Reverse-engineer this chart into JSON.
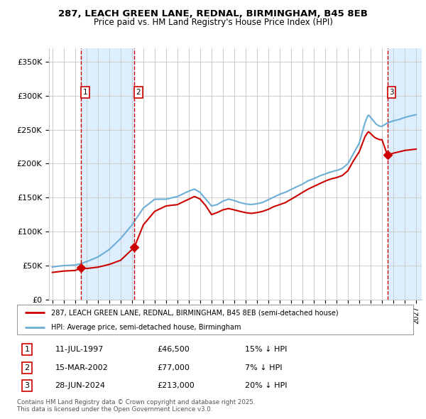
{
  "title_line1": "287, LEACH GREEN LANE, REDNAL, BIRMINGHAM, B45 8EB",
  "title_line2": "Price paid vs. HM Land Registry's House Price Index (HPI)",
  "sale_prices": [
    46500,
    77000,
    213000
  ],
  "sale_labels": [
    "1",
    "2",
    "3"
  ],
  "sale_hpi_pct": [
    "15% ↓ HPI",
    "7% ↓ HPI",
    "20% ↓ HPI"
  ],
  "sale_date_strs": [
    "11-JUL-1997",
    "15-MAR-2002",
    "28-JUN-2024"
  ],
  "sale_price_strs": [
    "£46,500",
    "£77,000",
    "£213,000"
  ],
  "legend_line1": "287, LEACH GREEN LANE, REDNAL, BIRMINGHAM, B45 8EB (semi-detached house)",
  "legend_line2": "HPI: Average price, semi-detached house, Birmingham",
  "footnote": "Contains HM Land Registry data © Crown copyright and database right 2025.\nThis data is licensed under the Open Government Licence v3.0.",
  "hpi_color": "#6baed6",
  "price_color": "#cc0000",
  "bg_color": "#ffffff",
  "grid_color": "#cccccc",
  "shaded_region_color": "#ddeeff",
  "ylim": [
    0,
    370000
  ],
  "yticks": [
    0,
    50000,
    100000,
    150000,
    200000,
    250000,
    300000,
    350000
  ],
  "ytick_labels": [
    "£0",
    "£50K",
    "£100K",
    "£150K",
    "£200K",
    "£250K",
    "£300K",
    "£350K"
  ],
  "xlim_start": 1994.7,
  "xlim_end": 2027.5,
  "hpi_keypoints": [
    [
      1995.0,
      48000
    ],
    [
      1996.0,
      50000
    ],
    [
      1997.0,
      51000
    ],
    [
      1997.5,
      53000
    ],
    [
      1998.0,
      56000
    ],
    [
      1999.0,
      63000
    ],
    [
      2000.0,
      74000
    ],
    [
      2001.0,
      90000
    ],
    [
      2002.0,
      110000
    ],
    [
      2003.0,
      135000
    ],
    [
      2004.0,
      148000
    ],
    [
      2005.0,
      148000
    ],
    [
      2006.0,
      152000
    ],
    [
      2007.0,
      160000
    ],
    [
      2007.5,
      163000
    ],
    [
      2008.0,
      158000
    ],
    [
      2008.5,
      148000
    ],
    [
      2009.0,
      138000
    ],
    [
      2009.5,
      140000
    ],
    [
      2010.0,
      145000
    ],
    [
      2010.5,
      148000
    ],
    [
      2011.0,
      146000
    ],
    [
      2011.5,
      143000
    ],
    [
      2012.0,
      141000
    ],
    [
      2012.5,
      140000
    ],
    [
      2013.0,
      141000
    ],
    [
      2013.5,
      143000
    ],
    [
      2014.0,
      147000
    ],
    [
      2014.5,
      151000
    ],
    [
      2015.0,
      155000
    ],
    [
      2015.5,
      158000
    ],
    [
      2016.0,
      162000
    ],
    [
      2016.5,
      166000
    ],
    [
      2017.0,
      170000
    ],
    [
      2017.5,
      175000
    ],
    [
      2018.0,
      178000
    ],
    [
      2018.5,
      182000
    ],
    [
      2019.0,
      185000
    ],
    [
      2019.5,
      188000
    ],
    [
      2020.0,
      190000
    ],
    [
      2020.5,
      193000
    ],
    [
      2021.0,
      200000
    ],
    [
      2021.5,
      215000
    ],
    [
      2022.0,
      230000
    ],
    [
      2022.5,
      260000
    ],
    [
      2022.8,
      272000
    ],
    [
      2023.0,
      268000
    ],
    [
      2023.3,
      262000
    ],
    [
      2023.5,
      258000
    ],
    [
      2023.8,
      255000
    ],
    [
      2024.0,
      255000
    ],
    [
      2024.3,
      258000
    ],
    [
      2024.5,
      260000
    ],
    [
      2024.8,
      262000
    ],
    [
      2025.0,
      263000
    ],
    [
      2025.5,
      265000
    ],
    [
      2026.0,
      268000
    ],
    [
      2026.5,
      270000
    ],
    [
      2027.0,
      272000
    ]
  ],
  "price_keypoints": [
    [
      1995.0,
      40000
    ],
    [
      1996.0,
      42000
    ],
    [
      1997.0,
      43000
    ],
    [
      1997.53,
      46500
    ],
    [
      1998.0,
      46000
    ],
    [
      1999.0,
      48000
    ],
    [
      2000.0,
      52000
    ],
    [
      2001.0,
      58000
    ],
    [
      2002.21,
      77000
    ],
    [
      2003.0,
      110000
    ],
    [
      2004.0,
      130000
    ],
    [
      2005.0,
      138000
    ],
    [
      2006.0,
      140000
    ],
    [
      2007.0,
      148000
    ],
    [
      2007.5,
      152000
    ],
    [
      2008.0,
      148000
    ],
    [
      2008.5,
      138000
    ],
    [
      2009.0,
      125000
    ],
    [
      2009.5,
      128000
    ],
    [
      2010.0,
      132000
    ],
    [
      2010.5,
      134000
    ],
    [
      2011.0,
      132000
    ],
    [
      2011.5,
      130000
    ],
    [
      2012.0,
      128000
    ],
    [
      2012.5,
      127000
    ],
    [
      2013.0,
      128000
    ],
    [
      2013.5,
      130000
    ],
    [
      2014.0,
      133000
    ],
    [
      2014.5,
      137000
    ],
    [
      2015.0,
      140000
    ],
    [
      2015.5,
      143000
    ],
    [
      2016.0,
      148000
    ],
    [
      2016.5,
      153000
    ],
    [
      2017.0,
      158000
    ],
    [
      2017.5,
      163000
    ],
    [
      2018.0,
      167000
    ],
    [
      2018.5,
      171000
    ],
    [
      2019.0,
      175000
    ],
    [
      2019.5,
      178000
    ],
    [
      2020.0,
      180000
    ],
    [
      2020.5,
      183000
    ],
    [
      2021.0,
      190000
    ],
    [
      2021.5,
      205000
    ],
    [
      2022.0,
      218000
    ],
    [
      2022.5,
      240000
    ],
    [
      2022.8,
      248000
    ],
    [
      2023.0,
      245000
    ],
    [
      2023.3,
      240000
    ],
    [
      2023.5,
      238000
    ],
    [
      2023.8,
      236000
    ],
    [
      2024.0,
      236000
    ],
    [
      2024.49,
      213000
    ],
    [
      2024.6,
      213000
    ],
    [
      2024.8,
      215000
    ],
    [
      2025.0,
      216000
    ],
    [
      2025.5,
      218000
    ],
    [
      2026.0,
      220000
    ],
    [
      2026.5,
      221000
    ],
    [
      2027.0,
      222000
    ]
  ]
}
